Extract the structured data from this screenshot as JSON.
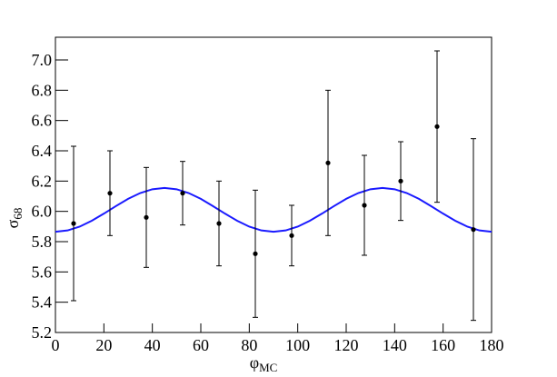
{
  "chart_data": {
    "type": "scatter",
    "xlabel": "φ",
    "xlabel_sub": "MC",
    "ylabel": "σ",
    "ylabel_sub": "68",
    "xlim": [
      0,
      180
    ],
    "ylim": [
      5.2,
      7.15
    ],
    "xticks": [
      0,
      20,
      40,
      60,
      80,
      100,
      120,
      140,
      160,
      180
    ],
    "yticks": [
      5.2,
      5.4,
      5.6,
      5.8,
      {
        "value": 6,
        "label": "6.0"
      },
      6.2,
      6.4,
      6.6,
      6.8,
      {
        "value": 7,
        "label": "7.0"
      }
    ],
    "points": {
      "color": "#000000",
      "x": [
        7.5,
        22.5,
        37.5,
        52.5,
        67.5,
        82.5,
        97.5,
        112.5,
        127.5,
        142.5,
        157.5,
        172.5
      ],
      "values": [
        5.92,
        6.12,
        5.96,
        6.12,
        5.92,
        5.72,
        5.84,
        6.32,
        6.04,
        6.2,
        6.56,
        5.88
      ],
      "errors": [
        0.51,
        0.28,
        0.33,
        0.21,
        0.28,
        0.42,
        0.2,
        0.48,
        0.33,
        0.26,
        0.5,
        0.6
      ]
    },
    "fit": {
      "color": "#1a1aff",
      "x": [
        0,
        5,
        10,
        15,
        20,
        25,
        30,
        35,
        40,
        45,
        50,
        55,
        60,
        65,
        70,
        75,
        80,
        85,
        90,
        95,
        100,
        105,
        110,
        115,
        120,
        125,
        130,
        135,
        140,
        145,
        150,
        155,
        160,
        165,
        170,
        175,
        180
      ],
      "values": [
        5.865,
        5.874,
        5.899,
        5.938,
        5.985,
        6.035,
        6.083,
        6.121,
        6.146,
        6.155,
        6.146,
        6.121,
        6.083,
        6.035,
        5.985,
        5.938,
        5.899,
        5.874,
        5.865,
        5.874,
        5.899,
        5.938,
        5.985,
        6.035,
        6.083,
        6.121,
        6.146,
        6.155,
        6.146,
        6.121,
        6.083,
        6.035,
        5.985,
        5.938,
        5.899,
        5.874,
        5.865
      ]
    }
  }
}
